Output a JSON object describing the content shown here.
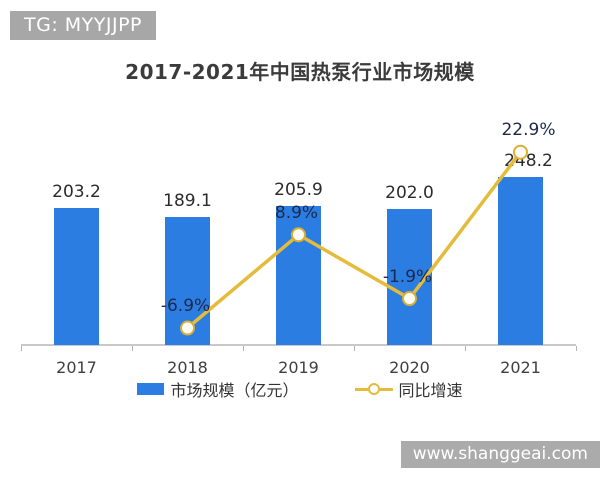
{
  "badge": {
    "text": "TG: MYYJJPP",
    "bg_color": "#a7a7a7"
  },
  "watermark": {
    "text": "www.shanggeai.com",
    "bg_color": "#ababab"
  },
  "colors": {
    "bar": "#2b7de1",
    "line": "#e4bb3b",
    "marker_stroke": "#d9af35",
    "marker_fill": "#fdfcf7",
    "title_text": "#3b3b3b",
    "value_label": "#2b2b2b",
    "growth_label": "#1b2a4a"
  },
  "chart_data": {
    "type": "bar",
    "subtype": "bar-line-combo",
    "title": "2017-2021年中国热泵行业市场规模",
    "categories": [
      "2017",
      "2018",
      "2019",
      "2020",
      "2021"
    ],
    "series": [
      {
        "name": "市场规模（亿元）",
        "type": "bar",
        "values": [
          203.2,
          189.1,
          205.9,
          202.0,
          248.2
        ],
        "labels": [
          "203.2",
          "189.1",
          "205.9",
          "202.0",
          "248.2"
        ],
        "color": "#2b7de1"
      },
      {
        "name": "同比增速",
        "type": "line",
        "values": [
          null,
          -6.9,
          8.9,
          -1.9,
          22.9
        ],
        "labels": [
          null,
          "-6.9%",
          "8.9%",
          "-1.9%",
          "22.9%"
        ],
        "color": "#e4bb3b"
      }
    ],
    "xlabel": "",
    "ylabel": "",
    "ylim_bar": [
      0,
      260
    ],
    "grid": false,
    "legend_position": "bottom"
  }
}
